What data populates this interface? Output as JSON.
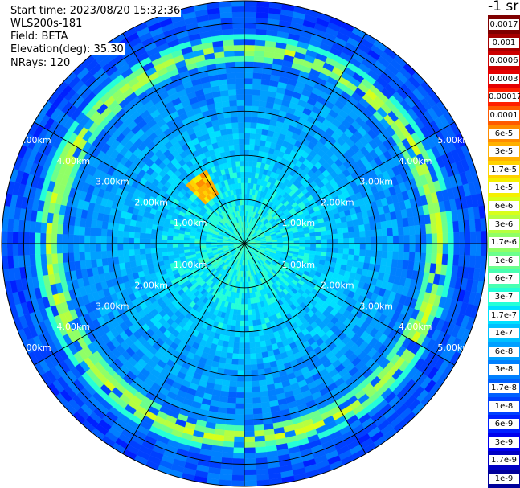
{
  "info": {
    "start_time": "Start time: 2023/08/20 15:32:36",
    "device": "WLS200s-181",
    "field": "Field: BETA",
    "elevation": "Elevation(deg): 35.30",
    "nrays": "NRays: 120"
  },
  "colorbar": {
    "unit": "-1 sr",
    "ticks": [
      "0.0017",
      "0.001",
      "0.0006",
      "0.0003",
      "0.00017",
      "0.0001",
      "6e-5",
      "3e-5",
      "1.7e-5",
      "1e-5",
      "6e-6",
      "3e-6",
      "1.7e-6",
      "1e-6",
      "6e-7",
      "3e-7",
      "1.7e-7",
      "1e-7",
      "6e-8",
      "3e-8",
      "1.7e-8",
      "1e-8",
      "6e-9",
      "3e-9",
      "1.7e-9",
      "1e-9"
    ],
    "colors": [
      "#7f0000",
      "#a50000",
      "#cc0000",
      "#e60000",
      "#ff2000",
      "#ff5a00",
      "#ff8c00",
      "#ffb000",
      "#ffd200",
      "#f5f000",
      "#d8ff1a",
      "#b6ff40",
      "#90ff66",
      "#6cff8c",
      "#48ffb2",
      "#24ffd8",
      "#00e0ff",
      "#00c0ff",
      "#00a0ff",
      "#0080ff",
      "#0060ff",
      "#0040ff",
      "#0020ff",
      "#0000ee",
      "#0000c4",
      "#00009a"
    ]
  },
  "chart_data": {
    "type": "heatmap",
    "projection": "polar (PPI scan)",
    "field": "BETA",
    "rays": 120,
    "range_rings_km": [
      1.0,
      2.0,
      3.0,
      4.0,
      5.0
    ],
    "range_labels": [
      "1.00km",
      "2.00km",
      "3.00km",
      "4.00km",
      "5.00km"
    ],
    "max_range_km": 5.5,
    "spokes_deg": [
      0,
      30,
      60,
      90,
      120,
      150,
      180,
      210,
      240,
      270,
      300,
      330
    ],
    "features": [
      {
        "description": "elevated backscatter ring",
        "range_km": 4.4,
        "value_range": [
          "1.7e-6",
          "1e-5"
        ]
      },
      {
        "description": "localized high spot",
        "range_km": 1.6,
        "bearing_deg": 325,
        "value": "6e-5"
      }
    ],
    "background_value_range": [
      "1e-8",
      "3e-7"
    ]
  }
}
